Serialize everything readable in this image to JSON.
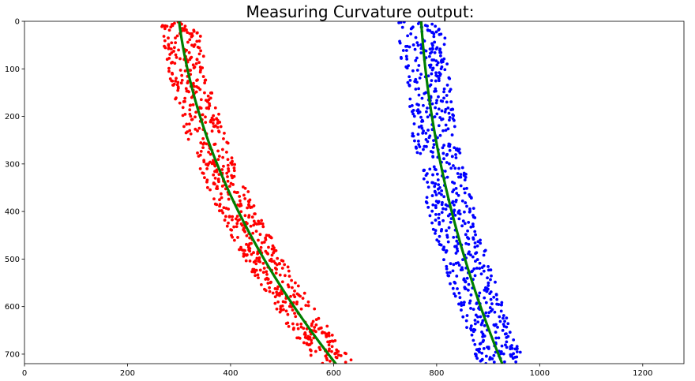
{
  "chart_data": {
    "type": "scatter",
    "title": "Measuring Curvature output:",
    "xlabel": "",
    "ylabel": "",
    "xlim": [
      0,
      1280
    ],
    "ylim": [
      720,
      0
    ],
    "y_inverted": true,
    "grid": false,
    "legend": "none",
    "x_ticks": [
      0,
      200,
      400,
      600,
      800,
      1000,
      1200
    ],
    "y_ticks": [
      0,
      100,
      200,
      300,
      400,
      500,
      600,
      700
    ],
    "series": [
      {
        "kind": "scatter",
        "color": "#ff0000",
        "marker": "dot",
        "band_center_formula": "x = 4.2e-4*y^2 + 0.12*y + 300",
        "band_half_width": 38,
        "point_count": 700,
        "y_range": [
          0,
          720
        ]
      },
      {
        "kind": "scatter",
        "color": "#0000ff",
        "marker": "dot",
        "band_center_formula": "x = 2.2e-4*y^2 + 0.06*y + 770",
        "band_half_width": 45,
        "point_count": 700,
        "y_range": [
          0,
          720
        ]
      },
      {
        "kind": "line",
        "color": "#008000",
        "coefficients": [
          0.00042,
          0.12,
          300
        ],
        "y_range": [
          0,
          720
        ]
      },
      {
        "kind": "line",
        "color": "#008000",
        "coefficients": [
          0.00022,
          0.06,
          770
        ],
        "y_range": [
          0,
          720
        ]
      }
    ]
  }
}
